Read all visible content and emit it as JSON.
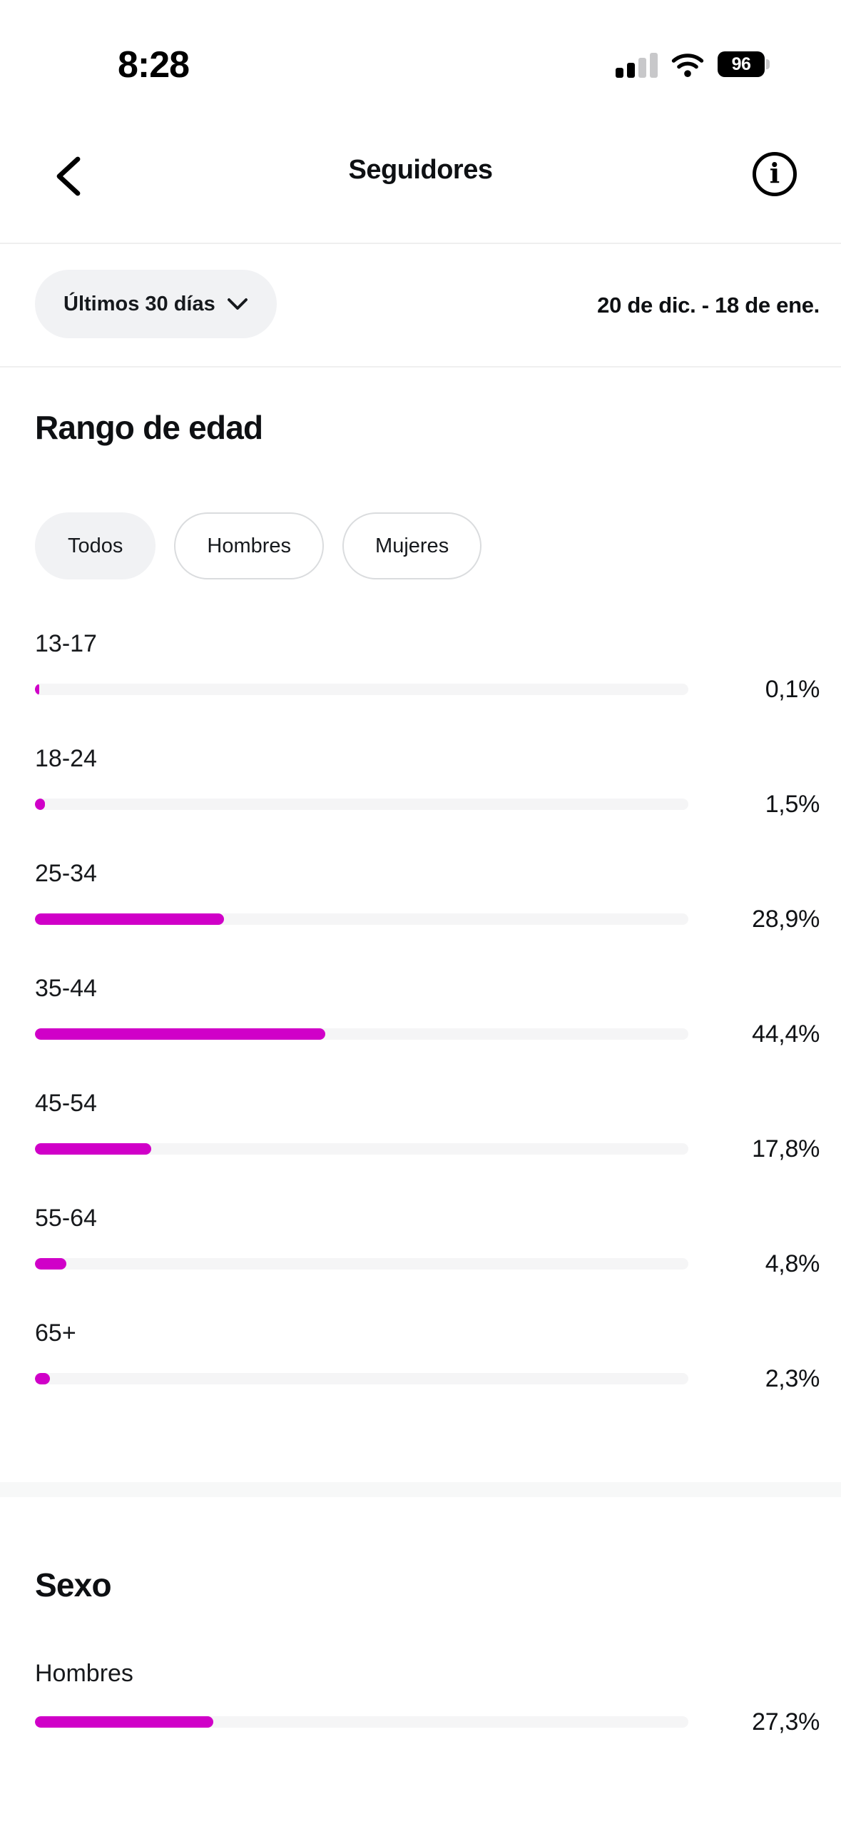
{
  "status_bar": {
    "time": "8:28",
    "battery_percent": "96",
    "signal_icon": "cellular-signal-2-of-4-bars",
    "wifi_icon": "wifi-full"
  },
  "header": {
    "title": "Seguidores",
    "back_icon": "chevron-left",
    "info_icon": "info-circle"
  },
  "filter": {
    "range_button_label": "Últimos 30 días",
    "range_button_icon": "chevron-down",
    "date_range": "20 de dic. - 18 de ene."
  },
  "age_section": {
    "title": "Rango de edad",
    "tabs": [
      {
        "label": "Todos",
        "selected": true
      },
      {
        "label": "Hombres",
        "selected": false
      },
      {
        "label": "Mujeres",
        "selected": false
      }
    ]
  },
  "sexo_section": {
    "title": "Sexo"
  },
  "colors": {
    "accent_bar": "#D000C8",
    "bar_track": "#F5F5F6",
    "chip_background": "#F1F2F4",
    "pill_border": "#DADCDE",
    "divider": "#EFEFEF",
    "separator_band": "#F7F8F8",
    "text_primary": "#0E1013"
  },
  "chart_data": [
    {
      "type": "bar",
      "orientation": "horizontal",
      "title": "Rango de edad",
      "categories": [
        "13-17",
        "18-24",
        "25-34",
        "35-44",
        "45-54",
        "55-64",
        "65+"
      ],
      "values": [
        0.1,
        1.5,
        28.9,
        44.4,
        17.8,
        4.8,
        2.3
      ],
      "value_labels": [
        "0,1%",
        "1,5%",
        "28,9%",
        "44,4%",
        "17,8%",
        "4,8%",
        "2,3%"
      ],
      "xlim": [
        0,
        100
      ],
      "grid": false,
      "legend": "none",
      "bar_color": "#D000C8",
      "track_color": "#F5F5F6"
    },
    {
      "type": "bar",
      "orientation": "horizontal",
      "title": "Sexo",
      "categories": [
        "Hombres"
      ],
      "values": [
        27.3
      ],
      "value_labels": [
        "27,3%"
      ],
      "xlim": [
        0,
        100
      ],
      "grid": false,
      "legend": "none",
      "bar_color": "#D000C8",
      "track_color": "#F5F5F6"
    }
  ]
}
